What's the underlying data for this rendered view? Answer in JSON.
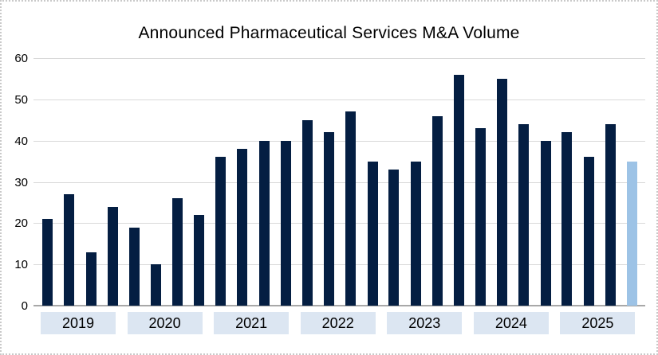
{
  "chart_data": {
    "type": "bar",
    "title": "Announced Pharmaceutical Services M&A Volume",
    "xlabel": "",
    "ylabel": "",
    "ylim": [
      0,
      60
    ],
    "y_ticks": [
      0,
      10,
      20,
      30,
      40,
      50,
      60
    ],
    "grid": true,
    "legend": "none",
    "categories": [
      "2019",
      "2020",
      "2021",
      "2022",
      "2023",
      "2024",
      "2025"
    ],
    "bars_per_category": 4,
    "groups": [
      {
        "year": "2019",
        "values": [
          21,
          27,
          13,
          24
        ]
      },
      {
        "year": "2020",
        "values": [
          19,
          10,
          26,
          22
        ]
      },
      {
        "year": "2021",
        "values": [
          36,
          38,
          40,
          40
        ]
      },
      {
        "year": "2022",
        "values": [
          45,
          42,
          47,
          35
        ]
      },
      {
        "year": "2023",
        "values": [
          33,
          35,
          46,
          56
        ]
      },
      {
        "year": "2024",
        "values": [
          43,
          55,
          44,
          40
        ]
      },
      {
        "year": "2025",
        "values": [
          42,
          36,
          44,
          35
        ]
      }
    ],
    "highlight": {
      "year": "2025",
      "bar_index": 3,
      "value": 35,
      "style": "light-blue bar (most recent period)"
    },
    "colors": {
      "bar": "#041e42",
      "highlight_bar": "#9dc3e6",
      "year_band_fill": "#dce6f2",
      "gridline": "#d9d9d9",
      "axis_line": "#a8a8a8",
      "text": "#000000",
      "frame_border": "#c9c9c9"
    }
  }
}
